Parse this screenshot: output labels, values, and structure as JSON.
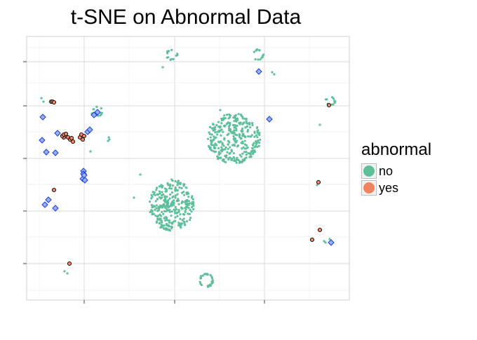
{
  "chart_data": {
    "type": "scatter",
    "title": "t-SNE on Abnormal Data",
    "xlabel": "",
    "ylabel": "",
    "xlim": [
      0,
      460
    ],
    "ylim": [
      0,
      376
    ],
    "grid": true,
    "legend": {
      "title": "abnormal",
      "position": "right",
      "entries": [
        {
          "label": "no",
          "color": "#5fbf9a"
        },
        {
          "label": "yes",
          "color": "#f28360"
        }
      ]
    },
    "series": [
      {
        "name": "no",
        "color": "#5fbf9a",
        "clusters": [
          {
            "center": [
              295,
              230
            ],
            "radius": [
              38,
              36
            ],
            "count": 320
          },
          {
            "center": [
              207,
              135
            ],
            "radius": [
              32,
              37
            ],
            "count": 300
          },
          {
            "center": [
              256,
              28
            ],
            "radius": [
              10,
              10
            ],
            "count": 30,
            "ring": true
          },
          {
            "center": [
              207,
              350
            ],
            "radius": [
              8,
              8
            ],
            "count": 14,
            "ring": true
          },
          {
            "center": [
              330,
              350
            ],
            "radius": [
              8,
              8
            ],
            "count": 14,
            "ring": true
          },
          {
            "center": [
              101,
              269
            ],
            "radius": [
              7,
              7
            ],
            "count": 12,
            "ring": true
          },
          {
            "center": [
              433,
              284
            ],
            "radius": [
              7,
              6
            ],
            "count": 12,
            "ring": true
          }
        ],
        "scatter": [
          [
            21,
            288
          ],
          [
            24,
            283
          ],
          [
            54,
            41
          ],
          [
            58,
            38
          ],
          [
            91,
            212
          ],
          [
            116,
            227
          ],
          [
            118,
            229
          ],
          [
            117,
            232
          ],
          [
            153,
            146
          ],
          [
            162,
            179
          ],
          [
            194,
            332
          ],
          [
            276,
            271
          ],
          [
            350,
            325
          ],
          [
            353,
            322
          ],
          [
            418,
            250
          ],
          [
            414,
            164
          ],
          [
            424,
            84
          ],
          [
            426,
            82
          ],
          [
            432,
            87
          ],
          [
            93,
            266
          ]
        ]
      },
      {
        "name": "yes",
        "color": "#f28360",
        "points": [
          [
            35,
            283
          ],
          [
            37,
            283
          ],
          [
            39,
            282
          ],
          [
            53,
            232
          ],
          [
            51,
            234
          ],
          [
            53,
            236
          ],
          [
            56,
            237
          ],
          [
            59,
            232
          ],
          [
            62,
            229
          ],
          [
            64,
            231
          ],
          [
            66,
            226
          ],
          [
            76,
            232
          ],
          [
            78,
            236
          ],
          [
            82,
            234
          ],
          [
            80,
            229
          ],
          [
            39,
            157
          ],
          [
            61,
            52
          ],
          [
            416,
            168
          ],
          [
            418,
            100
          ],
          [
            407,
            86
          ],
          [
            431,
            278
          ]
        ]
      }
    ],
    "overlay_outlined_points": [
      [
        23,
        261
      ],
      [
        22,
        228
      ],
      [
        44,
        238
      ],
      [
        28,
        211
      ],
      [
        41,
        210
      ],
      [
        31,
        143
      ],
      [
        26,
        136
      ],
      [
        41,
        131
      ],
      [
        81,
        184
      ],
      [
        81,
        180
      ],
      [
        80,
        173
      ],
      [
        83,
        171
      ],
      [
        82,
        178
      ],
      [
        87,
        240
      ],
      [
        90,
        243
      ],
      [
        96,
        264
      ],
      [
        101,
        268
      ],
      [
        331,
        326
      ],
      [
        346,
        258
      ],
      [
        434,
        82
      ]
    ]
  }
}
